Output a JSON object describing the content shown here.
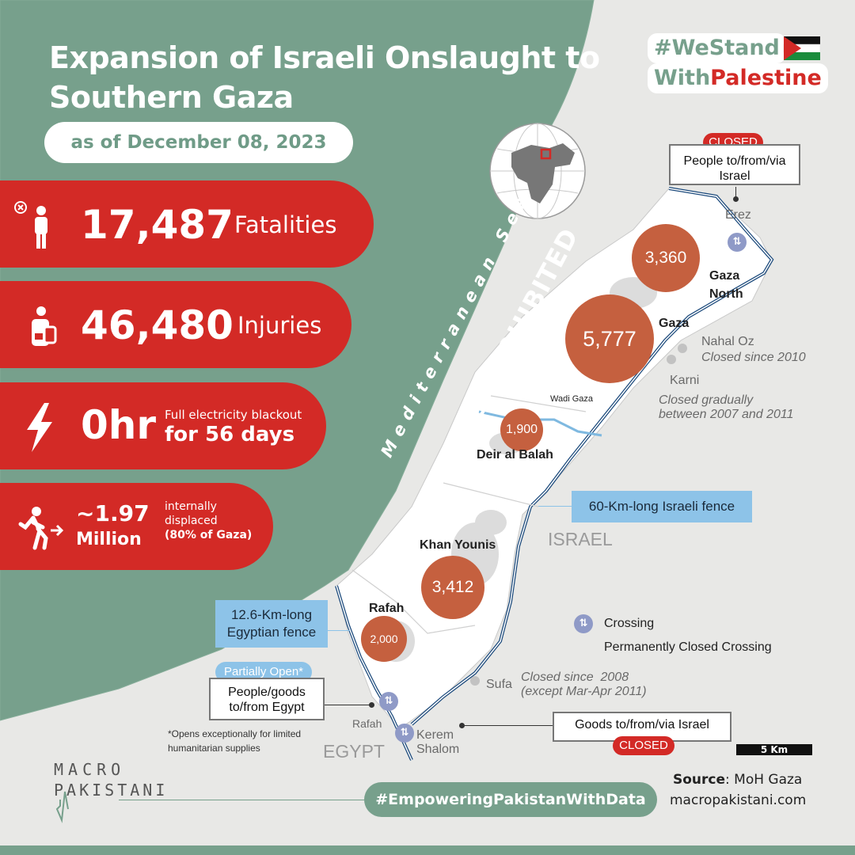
{
  "title": "Expansion of Israeli Onslaught to Southern Gaza",
  "date": "as of December 08, 2023",
  "hashtag_top": {
    "line1": "#WeStand",
    "line2_a": "With",
    "line2_b": "Palestine"
  },
  "stats": [
    {
      "icon": "fatality-person-icon",
      "value": "17,487",
      "label": "Fatalities"
    },
    {
      "icon": "injured-person-icon",
      "value": "46,480",
      "label": "Injuries"
    },
    {
      "icon": "lightning-icon",
      "value": "0hr",
      "label_small": "Full electricity blackout",
      "label_big": "for 56 days"
    },
    {
      "icon": "displaced-person-icon",
      "value": "~1.97",
      "value_line2": "Million",
      "note_l1": "internally",
      "note_l2": "displaced",
      "note_l3": "(80% of Gaza)"
    }
  ],
  "map": {
    "sea_label": "Mediterranean Sea",
    "access_label": "ACCESS PROHIBITED",
    "israel_label": "ISRAEL",
    "egypt_label": "EGYPT",
    "wadi_label": "Wadi Gaza",
    "regions": [
      {
        "name": "Gaza North",
        "name_l1": "Gaza",
        "name_l2": "North",
        "value": "3,360"
      },
      {
        "name": "Gaza",
        "value": "5,777"
      },
      {
        "name": "Deir al Balah",
        "value": "1,900"
      },
      {
        "name": "Khan Younis",
        "value": "3,412"
      },
      {
        "name": "Rafah",
        "value": "2,000"
      }
    ],
    "crossings": {
      "erez": {
        "name": "Erez",
        "status": "CLOSED",
        "desc_l1": "People to/from/via",
        "desc_l2": "Israel"
      },
      "nahal_oz": {
        "name": "Nahal Oz",
        "note": "Closed since 2010"
      },
      "karni": {
        "name": "Karni",
        "note_l1": "Closed gradually",
        "note_l2": "between 2007 and 2011"
      },
      "sufa": {
        "name": "Sufa",
        "note_l1": "Closed since  2008",
        "note_l2": "(except Mar-Apr 2011)"
      },
      "rafah": {
        "name": "Rafah",
        "status": "Partially Open*",
        "desc_l1": "People/goods",
        "desc_l2": "to/from Egypt",
        "footnote_l1": "*Opens exceptionally for limited",
        "footnote_l2": "humanitarian supplies"
      },
      "kerem_shalom": {
        "name_l1": "Kerem",
        "name_l2": "Shalom",
        "status": "CLOSED",
        "desc": "Goods to/from/via Israel"
      }
    },
    "israeli_fence": "60-Km-long Israeli fence",
    "egyptian_fence_l1": "12.6-Km-long",
    "egyptian_fence_l2": "Egyptian fence",
    "legend": {
      "crossing": "Crossing",
      "closed": "Permanently Closed Crossing"
    },
    "scale": "5 Km"
  },
  "source_label": "Source",
  "source_value": ": MoH Gaza",
  "website": "macropakistani.com",
  "bottom_hashtag": "#EmpoweringPakistanWithData",
  "logo": {
    "line1": "MACRO",
    "line2": "PAKISTANI"
  },
  "colors": {
    "green": "#77a08c",
    "red": "#d32a26",
    "circle": "#c5603f",
    "blue": "#8dc3e8",
    "crossing": "#8f9ac7"
  }
}
